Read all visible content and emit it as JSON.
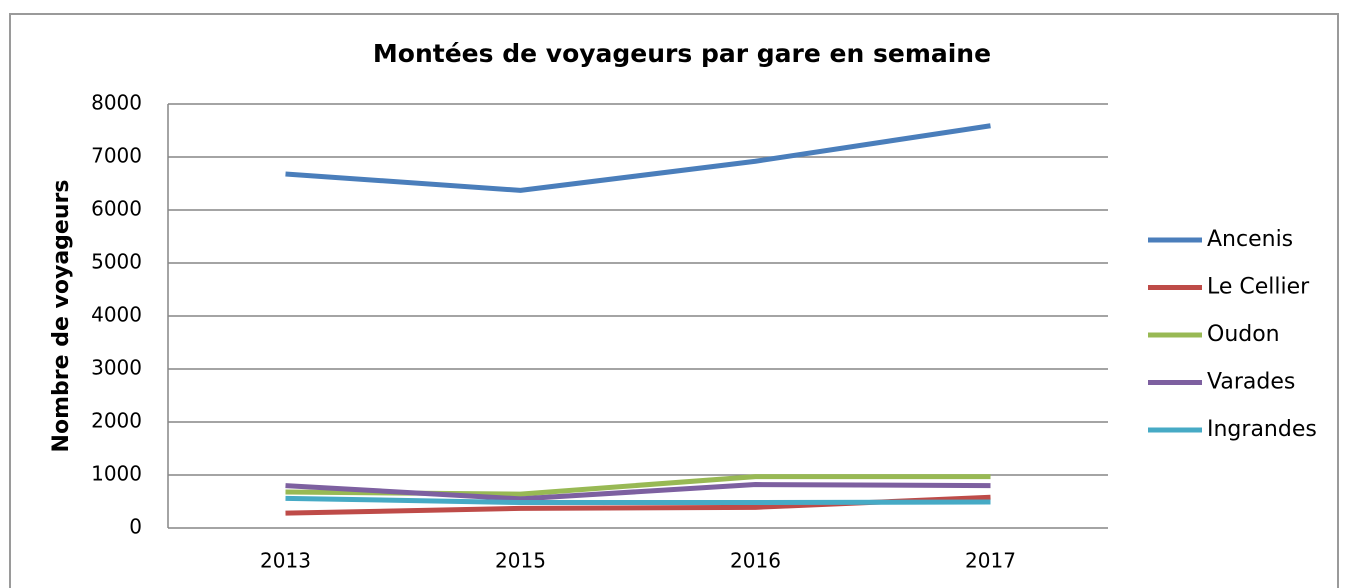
{
  "chart_data": {
    "type": "line",
    "title": "Montées de voyageurs par gare en semaine",
    "y_label": "Nombre de voyageurs",
    "categories": [
      "2013",
      "2015",
      "2016",
      "2017"
    ],
    "series": [
      {
        "name": "Ancenis",
        "color": "#4a7ebb",
        "values": [
          6680,
          6370,
          6920,
          7590
        ]
      },
      {
        "name": "Le Cellier",
        "color": "#be4b48",
        "values": [
          280,
          370,
          390,
          580
        ]
      },
      {
        "name": "Oudon",
        "color": "#98b954",
        "values": [
          680,
          640,
          970,
          970
        ]
      },
      {
        "name": "Varades",
        "color": "#7d60a0",
        "values": [
          800,
          550,
          820,
          800
        ]
      },
      {
        "name": "Ingrandes",
        "color": "#46aac5",
        "values": [
          560,
          480,
          480,
          490
        ]
      }
    ],
    "ylim": [
      0,
      8000
    ],
    "yticks": [
      0,
      1000,
      2000,
      3000,
      4000,
      5000,
      6000,
      7000,
      8000
    ],
    "grid": true,
    "legend": "right"
  }
}
